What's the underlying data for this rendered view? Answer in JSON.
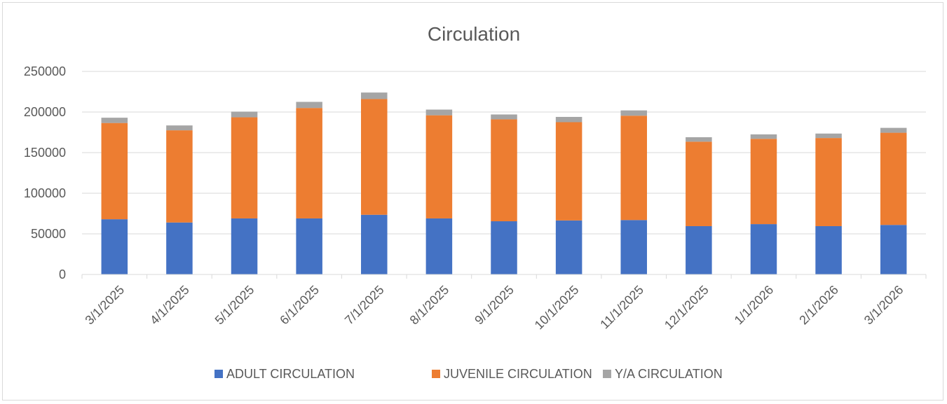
{
  "chart_data": {
    "type": "bar",
    "stacked": true,
    "title": "Circulation",
    "xlabel": "",
    "ylabel": "",
    "ylim": [
      0,
      250000
    ],
    "yticks": [
      "0",
      "50000",
      "100000",
      "150000",
      "200000",
      "250000"
    ],
    "grid": true,
    "legend_position": "bottom",
    "categories": [
      "3/1/2025",
      "4/1/2025",
      "5/1/2025",
      "6/1/2025",
      "7/1/2025",
      "8/1/2025",
      "9/1/2025",
      "10/1/2025",
      "11/1/2025",
      "12/1/2025",
      "1/1/2026",
      "2/1/2026",
      "3/1/2026"
    ],
    "series": [
      {
        "name": "ADULT CIRCULATION",
        "color": "#4472c4",
        "values": [
          68000,
          64000,
          69000,
          69000,
          73500,
          69000,
          65500,
          66500,
          67000,
          59500,
          62000,
          59500,
          61000
        ]
      },
      {
        "name": "JUVENILE CIRCULATION",
        "color": "#ed7d31",
        "values": [
          118500,
          113500,
          124500,
          136000,
          142500,
          127000,
          125500,
          121000,
          128500,
          104000,
          105000,
          108500,
          113500
        ]
      },
      {
        "name": "Y/A CIRCULATION",
        "color": "#a5a5a5",
        "values": [
          6500,
          6000,
          7000,
          7500,
          8000,
          7000,
          6000,
          6500,
          6500,
          5500,
          5500,
          5500,
          6000
        ]
      }
    ]
  }
}
